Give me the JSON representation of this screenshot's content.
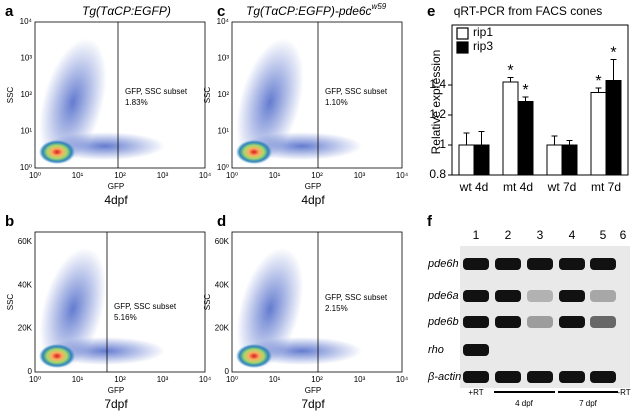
{
  "flow_panels": [
    {
      "label": "a",
      "title": "Tg(TαCP:EGFP)",
      "y_label": "SSC",
      "x_label": "GFP",
      "yticks": [
        "10⁰",
        "10¹",
        "10²",
        "10³",
        "10⁴"
      ],
      "xticks": [
        "10⁰",
        "10¹",
        "10²",
        "10³",
        "10⁴"
      ],
      "gate_label": "GFP, SSC subset",
      "gate_percent": "1.83%",
      "stage": "4dpf"
    },
    {
      "label": "b",
      "y_label": "SSC",
      "x_label": "GFP",
      "yticks": [
        "0",
        "20K",
        "40K",
        "60K"
      ],
      "xticks": [
        "10⁰",
        "10¹",
        "10²",
        "10³",
        "10⁴"
      ],
      "gate_label": "GFP, SSC subset",
      "gate_percent": "5.16%",
      "stage": "7dpf"
    },
    {
      "label": "c",
      "title": "Tg(TαCP:EGFP)-pde6c",
      "title_sup": "w59",
      "y_label": "SSC",
      "x_label": "GFP",
      "yticks": [
        "10⁰",
        "10¹",
        "10²",
        "10³",
        "10⁴"
      ],
      "xticks": [
        "10⁰",
        "10¹",
        "10²",
        "10³",
        "10⁴"
      ],
      "gate_label": "GFP, SSC subset",
      "gate_percent": "1.10%",
      "stage": "4dpf"
    },
    {
      "label": "d",
      "y_label": "SSC",
      "x_label": "GFP",
      "yticks": [
        "0",
        "20K",
        "40K",
        "60K"
      ],
      "xticks": [
        "10⁰",
        "10¹",
        "10²",
        "10³",
        "10⁴"
      ],
      "gate_label": "GFP, SSC subset",
      "gate_percent": "2.15%",
      "stage": "7dpf"
    }
  ],
  "chart_data": {
    "type": "bar",
    "label": "e",
    "title": "qRT-PCR from FACS cones",
    "y_label": "Relative expression",
    "categories": [
      "wt 4d",
      "mt 4d",
      "wt 7d",
      "mt 7d"
    ],
    "series": [
      {
        "name": "rip1",
        "color": "#ffffff",
        "values": [
          1,
          1.42,
          1,
          1.35
        ],
        "errors": [
          0.08,
          0.03,
          0.06,
          0.03
        ],
        "significance": [
          null,
          "*",
          null,
          "*"
        ]
      },
      {
        "name": "rip3",
        "color": "#000000",
        "values": [
          1,
          1.29,
          1,
          1.43
        ],
        "errors": [
          0.09,
          0.03,
          0.03,
          0.14
        ],
        "significance": [
          null,
          "*",
          null,
          "*"
        ]
      }
    ],
    "ylim": [
      0.8,
      1.8
    ],
    "yticks": [
      0.8,
      1,
      1.2,
      1.4
    ],
    "legend": "top-left"
  },
  "gel": {
    "label": "f",
    "lanes": [
      "1",
      "2",
      "3",
      "4",
      "5",
      "6"
    ],
    "genes": [
      "pde6h",
      "pde6a",
      "pde6b",
      "rho",
      "β-actin"
    ],
    "conditions": [
      "+RT",
      "4 dpf",
      "7 dpf",
      "-RT"
    ]
  }
}
